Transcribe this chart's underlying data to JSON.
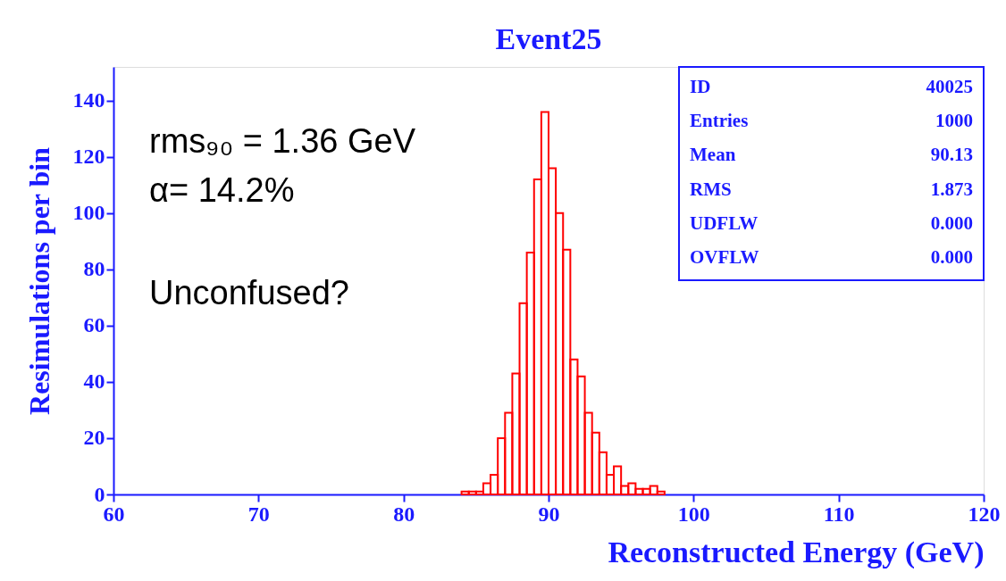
{
  "chart_data": {
    "type": "histogram",
    "title": "Event25",
    "xlabel": "Reconstructed Energy (GeV)",
    "ylabel": "Resimulations per bin",
    "bins": [
      84.0,
      84.5,
      85.0,
      85.5,
      86.0,
      86.5,
      87.0,
      87.5,
      88.0,
      88.5,
      89.0,
      89.5,
      90.0,
      90.5,
      91.0,
      91.5,
      92.0,
      92.5,
      93.0,
      93.5,
      94.0,
      94.5,
      95.0,
      95.5,
      96.0,
      96.5,
      97.0,
      97.5,
      98.0
    ],
    "values": [
      1,
      1,
      1,
      4,
      7,
      20,
      29,
      43,
      68,
      86,
      112,
      136,
      116,
      100,
      87,
      48,
      42,
      29,
      22,
      15,
      7,
      10,
      3,
      4,
      2,
      2,
      3,
      1
    ],
    "color": "#ff0000",
    "xlim": [
      60,
      120
    ],
    "xticks": [
      60,
      70,
      80,
      90,
      100,
      110,
      120
    ],
    "ylim": [
      0,
      152
    ],
    "yticks": [
      0,
      20,
      40,
      60,
      80,
      100,
      120,
      140
    ],
    "grid": false,
    "annotations": [
      "rms₉₀ = 1.36 GeV",
      "α= 14.2%",
      "Unconfused?",
      "ID",
      "40025",
      "Entries",
      "1000",
      "Mean",
      "90.13",
      "RMS",
      "1.873",
      "UDFLW",
      "0.000",
      "OVFLW",
      "0.000"
    ]
  }
}
